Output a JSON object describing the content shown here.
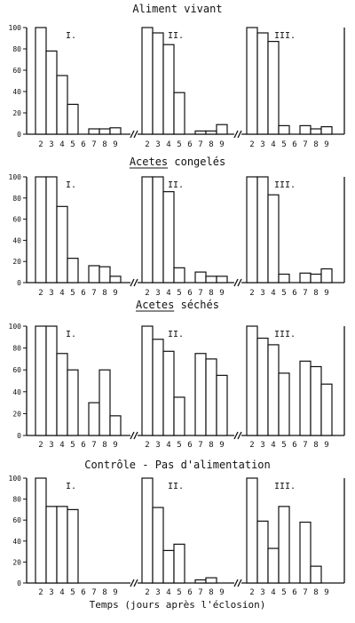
{
  "xlabel": "Temps (jours après l'éclosion)",
  "chart_data": [
    {
      "type": "bar",
      "title": "Aliment vivant",
      "ylim": [
        0,
        100
      ],
      "yticks": [
        0,
        20,
        40,
        60,
        80,
        100
      ],
      "x_labels": [
        "2",
        "3",
        "4",
        "5",
        "6",
        "7",
        "8",
        "9"
      ],
      "groups": [
        {
          "label": "I.",
          "values": [
            100,
            78,
            55,
            28,
            0,
            5,
            5,
            6
          ]
        },
        {
          "label": "II.",
          "values": [
            100,
            95,
            84,
            39,
            0,
            3,
            3,
            9
          ]
        },
        {
          "label": "III.",
          "values": [
            100,
            95,
            87,
            8,
            0,
            8,
            5,
            7
          ]
        }
      ]
    },
    {
      "type": "bar",
      "title": "Acetes congelés",
      "ylim": [
        0,
        100
      ],
      "yticks": [
        0,
        20,
        40,
        60,
        80,
        100
      ],
      "x_labels": [
        "2",
        "3",
        "4",
        "5",
        "6",
        "7",
        "8",
        "9"
      ],
      "groups": [
        {
          "label": "I.",
          "values": [
            100,
            100,
            72,
            23,
            0,
            16,
            15,
            6
          ]
        },
        {
          "label": "II.",
          "values": [
            100,
            100,
            86,
            14,
            0,
            10,
            6,
            6
          ]
        },
        {
          "label": "III.",
          "values": [
            100,
            100,
            83,
            8,
            0,
            9,
            8,
            13
          ]
        }
      ]
    },
    {
      "type": "bar",
      "title": "Acetes séchés",
      "ylim": [
        0,
        100
      ],
      "yticks": [
        0,
        20,
        40,
        60,
        80,
        100
      ],
      "x_labels": [
        "2",
        "3",
        "4",
        "5",
        "6",
        "7",
        "8",
        "9"
      ],
      "groups": [
        {
          "label": "I.",
          "values": [
            100,
            100,
            75,
            60,
            0,
            30,
            60,
            18
          ]
        },
        {
          "label": "II.",
          "values": [
            100,
            88,
            77,
            35,
            0,
            75,
            70,
            55
          ]
        },
        {
          "label": "III.",
          "values": [
            100,
            89,
            83,
            57,
            0,
            68,
            63,
            47
          ]
        }
      ]
    },
    {
      "type": "bar",
      "title": "Contrôle - Pas d'alimentation",
      "ylim": [
        0,
        100
      ],
      "yticks": [
        0,
        20,
        40,
        60,
        80,
        100
      ],
      "x_labels": [
        "2",
        "3",
        "4",
        "5",
        "6",
        "7",
        "8",
        "9"
      ],
      "groups": [
        {
          "label": "I.",
          "values": [
            100,
            73,
            73,
            70,
            0,
            0,
            0,
            0
          ]
        },
        {
          "label": "II.",
          "values": [
            100,
            72,
            31,
            37,
            0,
            3,
            5,
            0
          ]
        },
        {
          "label": "III.",
          "values": [
            100,
            59,
            33,
            73,
            0,
            58,
            16,
            0
          ]
        }
      ]
    }
  ]
}
